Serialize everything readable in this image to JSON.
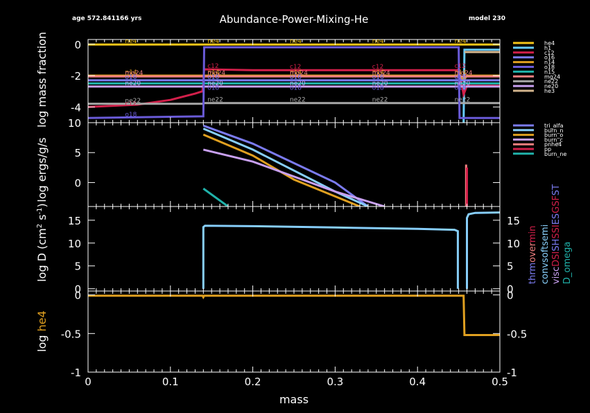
{
  "header": {
    "title": "Abundance-Power-Mixing-He",
    "age": "age 572.841166 yrs",
    "model": "model 230"
  },
  "colors": {
    "background": "#000000",
    "axes": "#ffffff",
    "he4": "#f5c518",
    "h1": "#66ccff",
    "c12": "#d21f4a",
    "n14": "#e0a020",
    "o16": "#7b7bf0",
    "o18": "#6a5bd8",
    "ne20": "#c8a0f0",
    "ne22": "#a8a8a8",
    "mg24": "#f08080",
    "n15": "#20b2aa",
    "he3": "#d2b48c",
    "mix_main": "#87cefa",
    "he4_panel": "#e0a020"
  },
  "chart_data": [
    {
      "type": "line",
      "panel": "abundance",
      "ylabel": "log mass fraction",
      "xlim": [
        0,
        0.5
      ],
      "ylim": [
        -5,
        0.3
      ],
      "yticks": [
        0,
        -2,
        -4
      ],
      "legend_position": "right",
      "legend": [
        "he4",
        "h1",
        "c12",
        "o16",
        "n14",
        "o18",
        "n15",
        "mg24",
        "ne22",
        "ne20",
        "he3"
      ],
      "inline_labels": [
        {
          "text": "he4",
          "series": "he4"
        },
        {
          "text": "c12",
          "series": "c12"
        },
        {
          "text": "n14",
          "series": "n14"
        },
        {
          "text": "ne20",
          "series": "ne20"
        },
        {
          "text": "mg24",
          "series": "mg24"
        },
        {
          "text": "o16",
          "series": "o16"
        },
        {
          "text": "ne22",
          "series": "ne22"
        },
        {
          "text": "o18",
          "series": "o18"
        }
      ],
      "label_x": [
        0.05,
        0.15,
        0.25,
        0.35,
        0.45
      ],
      "series": [
        {
          "name": "he4",
          "color": "he4",
          "x": [
            0,
            0.456,
            0.457,
            0.5
          ],
          "y": [
            -0.02,
            -0.02,
            -0.02,
            -0.02
          ]
        },
        {
          "name": "h1",
          "color": "h1",
          "x": [
            0.456,
            0.457,
            0.46,
            0.5
          ],
          "y": [
            -5,
            -0.35,
            -0.35,
            -0.35
          ]
        },
        {
          "name": "he3",
          "color": "he3",
          "x": [
            0.457,
            0.46,
            0.5
          ],
          "y": [
            -0.5,
            -0.5,
            -0.5
          ]
        },
        {
          "name": "c12",
          "color": "c12",
          "x": [
            0,
            0.06,
            0.1,
            0.13,
            0.139,
            0.141,
            0.2,
            0.3,
            0.445,
            0.448,
            0.45,
            0.456,
            0.46,
            0.5
          ],
          "y": [
            -4.0,
            -3.85,
            -3.55,
            -3.15,
            -3.0,
            -1.6,
            -1.65,
            -1.65,
            -1.65,
            -1.65,
            -1.6,
            -3.2,
            -2.65,
            -2.65
          ]
        },
        {
          "name": "n14",
          "color": "n14",
          "x": [
            0,
            0.139,
            0.141,
            0.448,
            0.451,
            0.456,
            0.46,
            0.5
          ],
          "y": [
            -2.0,
            -2.0,
            -2.0,
            -2.0,
            -1.95,
            -2.3,
            -2.0,
            -2.0
          ]
        },
        {
          "name": "mg24",
          "color": "mg24",
          "x": [
            0,
            0.5
          ],
          "y": [
            -2.05,
            -2.05
          ]
        },
        {
          "name": "o16",
          "color": "o16",
          "x": [
            0,
            0.5
          ],
          "y": [
            -2.3,
            -2.3
          ]
        },
        {
          "name": "n15",
          "color": "n15",
          "x": [
            0,
            0.139,
            0.141,
            0.5
          ],
          "y": [
            -2.5,
            -2.5,
            -2.5,
            -2.5
          ]
        },
        {
          "name": "ne20",
          "color": "ne20",
          "x": [
            0,
            0.5
          ],
          "y": [
            -2.7,
            -2.7
          ]
        },
        {
          "name": "ne22",
          "color": "ne22",
          "x": [
            0,
            0.139,
            0.141,
            0.5
          ],
          "y": [
            -3.8,
            -3.8,
            -3.75,
            -3.75
          ]
        },
        {
          "name": "o18",
          "color": "o18",
          "x": [
            0,
            0.139,
            0.14,
            0.141,
            0.45,
            0.451,
            0.5
          ],
          "y": [
            -4.7,
            -4.6,
            -4.6,
            -0.2,
            -0.2,
            -4.7,
            -4.7
          ]
        }
      ]
    },
    {
      "type": "line",
      "panel": "power",
      "ylabel": "log ergs/g/s",
      "xlim": [
        0,
        0.5
      ],
      "ylim": [
        -4,
        10
      ],
      "yticks": [
        10,
        5,
        0
      ],
      "legend_position": "right",
      "legend": [
        "tri_alfa",
        "burn_n",
        "burn_o",
        "burn_c",
        "pnhe4",
        "pp",
        "burn_ne"
      ],
      "legend_colors": [
        "#7b7bf0",
        "#87cefa",
        "#e0a020",
        "#c8a0f0",
        "#f08080",
        "#d21f4a",
        "#20b2aa"
      ],
      "series": [
        {
          "name": "tri_alfa",
          "color": "#7b7bf0",
          "x": [
            0.14,
            0.2,
            0.3,
            0.34
          ],
          "y": [
            9.5,
            6.5,
            0,
            -4
          ]
        },
        {
          "name": "burn_n",
          "color": "#87cefa",
          "x": [
            0.14,
            0.2,
            0.3,
            0.34
          ],
          "y": [
            9.0,
            5.5,
            -1.5,
            -4
          ]
        },
        {
          "name": "burn_o",
          "color": "#e0a020",
          "x": [
            0.14,
            0.2,
            0.25,
            0.33
          ],
          "y": [
            8.0,
            4.5,
            0.5,
            -4
          ]
        },
        {
          "name": "burn_c",
          "color": "#c8a0f0",
          "x": [
            0.14,
            0.2,
            0.3,
            0.36
          ],
          "y": [
            5.5,
            3.5,
            -1.5,
            -4
          ]
        },
        {
          "name": "pnhe4",
          "color": "#f08080",
          "x": [
            0.459,
            0.459
          ],
          "y": [
            -4,
            3
          ]
        },
        {
          "name": "pp",
          "color": "#d21f4a",
          "x": [
            0.46,
            0.46
          ],
          "y": [
            -4,
            2.5
          ]
        },
        {
          "name": "burn_ne",
          "color": "#20b2aa",
          "x": [
            0.14,
            0.17
          ],
          "y": [
            -1,
            -4
          ]
        }
      ]
    },
    {
      "type": "line",
      "panel": "mixing",
      "ylabel": "log D (cm^2 s^-1)",
      "xlim": [
        0,
        0.5
      ],
      "ylim": [
        -0.5,
        18
      ],
      "yticks": [
        0,
        5,
        10,
        15
      ],
      "legend_position": "right",
      "legend": [
        "thrm",
        "over",
        "min",
        "conv",
        "soft",
        "semi",
        "visc",
        "DSI",
        "SH",
        "SSI",
        "ES",
        "GSF",
        "ST",
        "D_omega"
      ],
      "legend_colors": [
        "#7b7bf0",
        "#f08080",
        "#d21f4a",
        "#87cefa",
        "#87cefa",
        "#87cefa",
        "#c8a0f0",
        "#d21f4a",
        "#7b7bf0",
        "#d21f4a",
        "#7b7bf0",
        "#d21f4a",
        "#7b7bf0",
        "#20b2aa"
      ],
      "series": [
        {
          "name": "conv",
          "color": "#87cefa",
          "x": [
            0.14,
            0.14,
            0.142,
            0.2,
            0.3,
            0.4,
            0.445,
            0.449,
            0.449
          ],
          "y": [
            0,
            13.5,
            13.8,
            13.7,
            13.4,
            13.1,
            12.9,
            12.6,
            0
          ]
        },
        {
          "name": "conv",
          "color": "#87cefa",
          "x": [
            0.46,
            0.46,
            0.462,
            0.47,
            0.5
          ],
          "y": [
            0,
            15.5,
            16.3,
            16.6,
            16.7
          ]
        }
      ]
    },
    {
      "type": "line",
      "panel": "he4",
      "ylabel": "log he4",
      "xlabel": "mass",
      "xlim": [
        0,
        0.5
      ],
      "ylim": [
        -1,
        0.05
      ],
      "yticks": [
        0,
        -0.5,
        -1
      ],
      "xticks": [
        0,
        0.1,
        0.2,
        0.3,
        0.4,
        0.5
      ],
      "series": [
        {
          "name": "he4",
          "color": "#e0a020",
          "x": [
            0,
            0.139,
            0.14,
            0.141,
            0.456,
            0.457,
            0.5
          ],
          "y": [
            -0.01,
            -0.01,
            -0.03,
            -0.01,
            -0.01,
            -0.52,
            -0.52
          ]
        }
      ]
    }
  ]
}
